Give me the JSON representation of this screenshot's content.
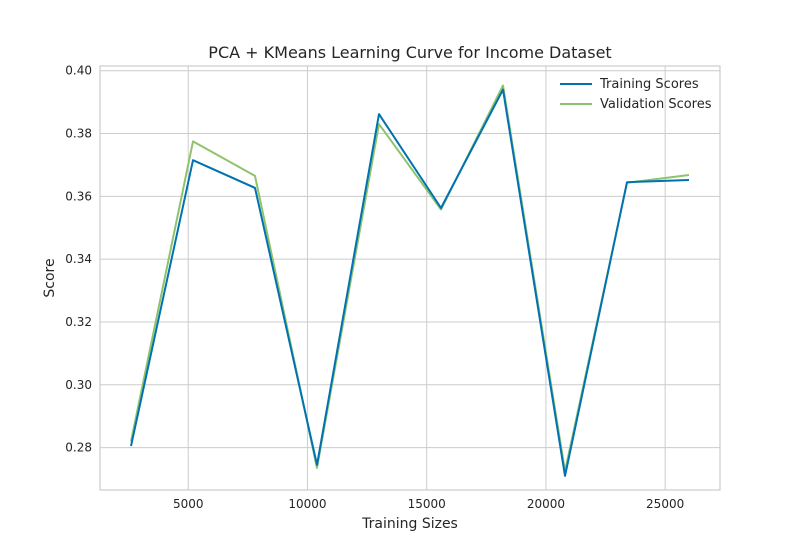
{
  "chart_data": {
    "type": "line",
    "title": "PCA + KMeans Learning Curve for Income Dataset",
    "xlabel": "Training Sizes",
    "ylabel": "Score",
    "xlim": [
      1300,
      27300
    ],
    "ylim": [
      0.2665,
      0.4015
    ],
    "xticks": [
      5000,
      10000,
      15000,
      20000,
      25000
    ],
    "yticks": [
      0.28,
      0.3,
      0.32,
      0.34,
      0.36,
      0.38,
      0.4
    ],
    "ytick_labels": [
      "0.28",
      "0.30",
      "0.32",
      "0.34",
      "0.36",
      "0.38",
      "0.40"
    ],
    "grid": true,
    "legend_position": "top-right",
    "x": [
      2600,
      5200,
      7800,
      10400,
      13000,
      15600,
      18200,
      20800,
      23400,
      26000
    ],
    "series": [
      {
        "name": "Training Scores",
        "color": "#0072b2",
        "values": [
          0.2805,
          0.3715,
          0.3627,
          0.2745,
          0.3862,
          0.3563,
          0.394,
          0.271,
          0.3645,
          0.3652
        ]
      },
      {
        "name": "Validation Scores",
        "color": "#8ec36c",
        "values": [
          0.282,
          0.3775,
          0.3665,
          0.2735,
          0.383,
          0.3558,
          0.3953,
          0.2725,
          0.3643,
          0.3668
        ]
      }
    ]
  }
}
